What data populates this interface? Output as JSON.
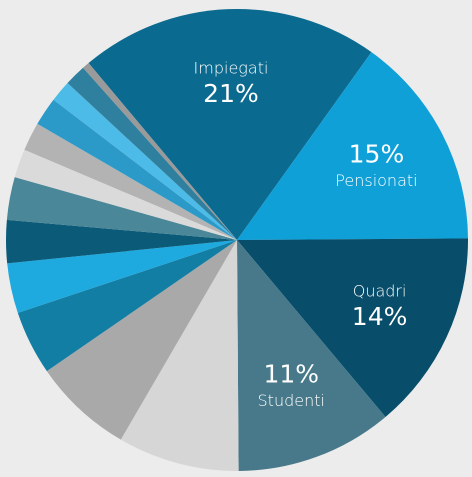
{
  "chart_data": {
    "type": "pie",
    "categories": [
      "Impiegati",
      "Pensionati",
      "Quadri",
      "Studenti",
      null,
      null,
      null,
      null,
      null,
      null,
      null,
      null,
      null,
      null,
      null,
      null
    ],
    "values": [
      21,
      15,
      14,
      11,
      8.5,
      7,
      4.5,
      3.5,
      3,
      3,
      2,
      2,
      2,
      1.5,
      1.5,
      0.5
    ],
    "value_labels": [
      "21%",
      "15%",
      "14%",
      "11%",
      null,
      null,
      null,
      null,
      null,
      null,
      null,
      null,
      null,
      null,
      null,
      null
    ],
    "colors": [
      "#0b6a8f",
      "#0fa0d8",
      "#084d6a",
      "#47798a",
      "#d6d6d6",
      "#a9a9a9",
      "#137ea3",
      "#1eaadf",
      "#0a5a78",
      "#4a8798",
      "#dadada",
      "#b3b3b3",
      "#2b9ac9",
      "#4cbbe8",
      "#2f7f9e",
      "#9a9a9a"
    ]
  }
}
